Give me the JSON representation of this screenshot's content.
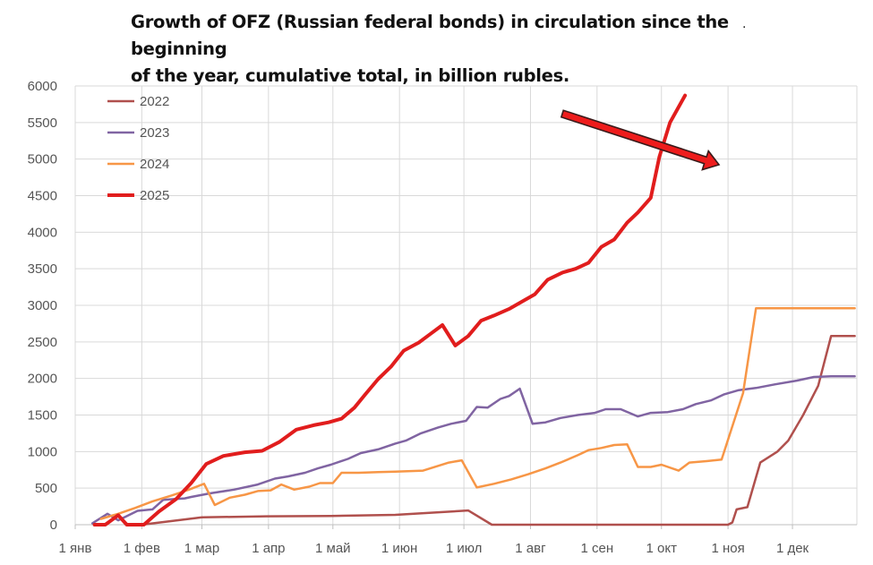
{
  "chart_data": {
    "type": "line",
    "title": "Growth of OFZ (Russian federal bonds) in circulation since the beginning of the year, cumulative total, in billion rubles.",
    "title_line1": "Growth of OFZ (Russian federal bonds) in circulation since the beginning",
    "title_line2": "of the year, cumulative total, in billion rubles.",
    "title_mark": ".",
    "xlabel": "",
    "ylabel": "",
    "ylim": [
      0,
      6000
    ],
    "yticks": [
      "0",
      "500",
      "1000",
      "1500",
      "2000",
      "2500",
      "3000",
      "3500",
      "4000",
      "4500",
      "5000",
      "5500",
      "6000"
    ],
    "x_unit": "day_of_year",
    "xlim": [
      1,
      365
    ],
    "xticks": [
      {
        "label": "1 янв",
        "day": 1
      },
      {
        "label": "1 фев",
        "day": 32
      },
      {
        "label": "1 мар",
        "day": 60
      },
      {
        "label": "1 апр",
        "day": 91
      },
      {
        "label": "1 май",
        "day": 121
      },
      {
        "label": "1 июн",
        "day": 152
      },
      {
        "label": "1 июл",
        "day": 182
      },
      {
        "label": "1 авг",
        "day": 213
      },
      {
        "label": "1 сен",
        "day": 244
      },
      {
        "label": "1 окт",
        "day": 274
      },
      {
        "label": "1 ноя",
        "day": 305
      },
      {
        "label": "1 дек",
        "day": 335
      }
    ],
    "grid": true,
    "legend_position": "top-left",
    "annotation": "red arrow pointing to the steep rise of 2025 in late October",
    "series": [
      {
        "name": "2022",
        "color": "#b0504d",
        "width": 2.5,
        "points": [
          [
            32,
            0
          ],
          [
            46,
            50
          ],
          [
            60,
            100
          ],
          [
            90,
            115
          ],
          [
            120,
            120
          ],
          [
            150,
            135
          ],
          [
            165,
            160
          ],
          [
            184,
            195
          ],
          [
            195,
            0
          ],
          [
            305,
            0
          ],
          [
            307,
            30
          ],
          [
            309,
            210
          ],
          [
            314,
            240
          ],
          [
            320,
            850
          ],
          [
            328,
            1000
          ],
          [
            333,
            1150
          ],
          [
            340,
            1500
          ],
          [
            347,
            1900
          ],
          [
            353,
            2580
          ],
          [
            364,
            2580
          ]
        ]
      },
      {
        "name": "2023",
        "color": "#8064a2",
        "width": 2.5,
        "points": [
          [
            9,
            20
          ],
          [
            16,
            150
          ],
          [
            21,
            60
          ],
          [
            30,
            190
          ],
          [
            37,
            210
          ],
          [
            42,
            340
          ],
          [
            47,
            350
          ],
          [
            52,
            360
          ],
          [
            55,
            380
          ],
          [
            64,
            430
          ],
          [
            75,
            480
          ],
          [
            86,
            550
          ],
          [
            94,
            630
          ],
          [
            100,
            660
          ],
          [
            108,
            710
          ],
          [
            114,
            770
          ],
          [
            120,
            820
          ],
          [
            128,
            900
          ],
          [
            134,
            980
          ],
          [
            142,
            1030
          ],
          [
            150,
            1110
          ],
          [
            155,
            1150
          ],
          [
            162,
            1250
          ],
          [
            170,
            1330
          ],
          [
            176,
            1380
          ],
          [
            183,
            1420
          ],
          [
            188,
            1610
          ],
          [
            193,
            1600
          ],
          [
            199,
            1720
          ],
          [
            203,
            1760
          ],
          [
            208,
            1860
          ],
          [
            214,
            1380
          ],
          [
            220,
            1400
          ],
          [
            227,
            1460
          ],
          [
            235,
            1500
          ],
          [
            243,
            1530
          ],
          [
            248,
            1580
          ],
          [
            255,
            1580
          ],
          [
            263,
            1480
          ],
          [
            269,
            1530
          ],
          [
            277,
            1540
          ],
          [
            284,
            1580
          ],
          [
            290,
            1650
          ],
          [
            297,
            1700
          ],
          [
            303,
            1780
          ],
          [
            310,
            1840
          ],
          [
            318,
            1870
          ],
          [
            327,
            1920
          ],
          [
            337,
            1970
          ],
          [
            345,
            2020
          ],
          [
            353,
            2030
          ],
          [
            364,
            2030
          ]
        ]
      },
      {
        "name": "2024",
        "color": "#f79646",
        "width": 2.5,
        "points": [
          [
            13,
            80
          ],
          [
            21,
            150
          ],
          [
            29,
            230
          ],
          [
            37,
            320
          ],
          [
            46,
            400
          ],
          [
            54,
            480
          ],
          [
            61,
            560
          ],
          [
            66,
            270
          ],
          [
            73,
            370
          ],
          [
            80,
            410
          ],
          [
            86,
            460
          ],
          [
            92,
            470
          ],
          [
            97,
            550
          ],
          [
            103,
            480
          ],
          [
            110,
            520
          ],
          [
            115,
            570
          ],
          [
            121,
            570
          ],
          [
            125,
            710
          ],
          [
            133,
            710
          ],
          [
            142,
            720
          ],
          [
            150,
            725
          ],
          [
            163,
            740
          ],
          [
            175,
            850
          ],
          [
            181,
            880
          ],
          [
            188,
            510
          ],
          [
            196,
            560
          ],
          [
            204,
            620
          ],
          [
            212,
            690
          ],
          [
            220,
            770
          ],
          [
            227,
            850
          ],
          [
            235,
            950
          ],
          [
            240,
            1020
          ],
          [
            246,
            1050
          ],
          [
            252,
            1090
          ],
          [
            258,
            1100
          ],
          [
            263,
            790
          ],
          [
            269,
            790
          ],
          [
            274,
            820
          ],
          [
            282,
            740
          ],
          [
            287,
            850
          ],
          [
            295,
            870
          ],
          [
            302,
            890
          ],
          [
            312,
            1800
          ],
          [
            318,
            2960
          ],
          [
            329,
            2960
          ],
          [
            364,
            2960
          ]
        ]
      },
      {
        "name": "2025",
        "color": "#e11d1d",
        "width": 4,
        "points": [
          [
            10,
            0
          ],
          [
            15,
            0
          ],
          [
            21,
            130
          ],
          [
            25,
            0
          ],
          [
            33,
            0
          ],
          [
            40,
            180
          ],
          [
            48,
            350
          ],
          [
            55,
            570
          ],
          [
            62,
            830
          ],
          [
            70,
            940
          ],
          [
            80,
            990
          ],
          [
            88,
            1010
          ],
          [
            96,
            1130
          ],
          [
            104,
            1300
          ],
          [
            112,
            1360
          ],
          [
            119,
            1400
          ],
          [
            125,
            1450
          ],
          [
            131,
            1600
          ],
          [
            136,
            1780
          ],
          [
            142,
            1990
          ],
          [
            148,
            2160
          ],
          [
            154,
            2380
          ],
          [
            161,
            2490
          ],
          [
            166,
            2600
          ],
          [
            172,
            2730
          ],
          [
            178,
            2450
          ],
          [
            184,
            2580
          ],
          [
            190,
            2790
          ],
          [
            196,
            2860
          ],
          [
            203,
            2950
          ],
          [
            209,
            3050
          ],
          [
            215,
            3150
          ],
          [
            221,
            3350
          ],
          [
            228,
            3450
          ],
          [
            234,
            3500
          ],
          [
            240,
            3580
          ],
          [
            246,
            3800
          ],
          [
            252,
            3900
          ],
          [
            258,
            4130
          ],
          [
            263,
            4270
          ],
          [
            269,
            4470
          ],
          [
            273,
            5030
          ],
          [
            278,
            5500
          ],
          [
            285,
            5870
          ]
        ]
      }
    ]
  }
}
